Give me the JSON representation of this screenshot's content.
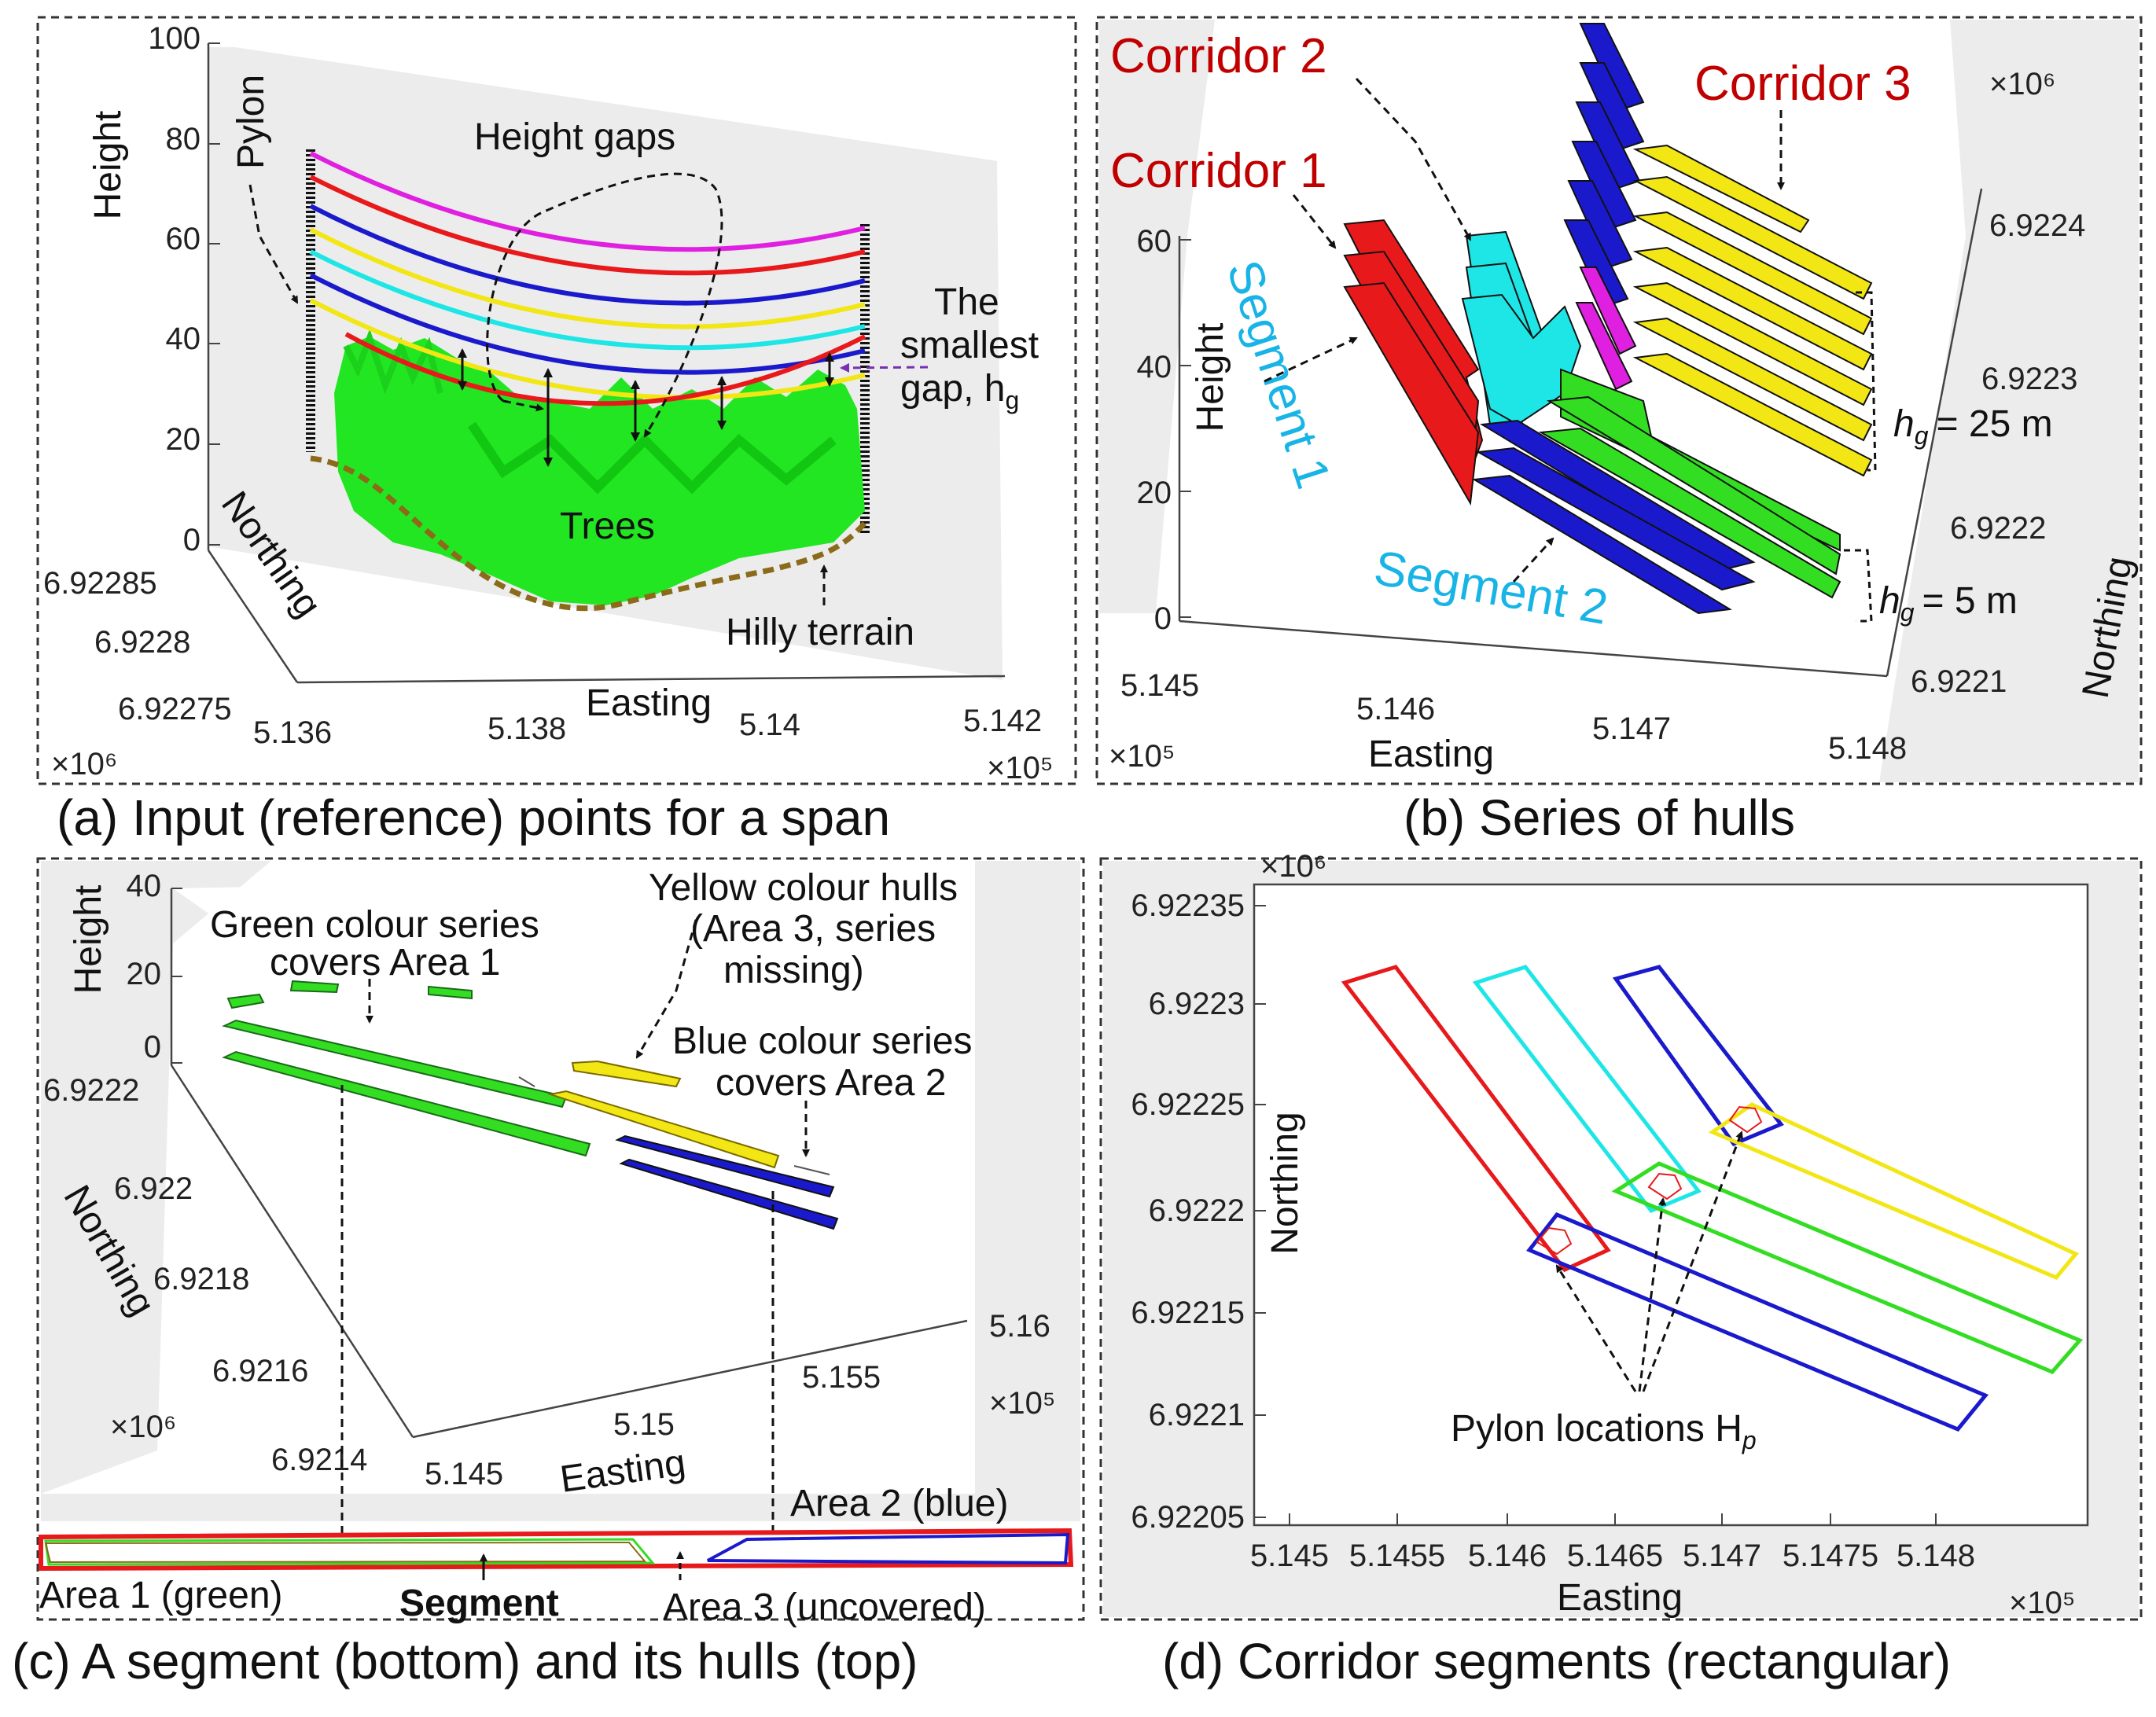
{
  "panel_a": {
    "caption": "(a) Input (reference) points for a span",
    "height_label": "Height",
    "northing_label": "Northing",
    "easting_label": "Easting",
    "height_ticks": [
      "100",
      "80",
      "60",
      "40",
      "20",
      "0"
    ],
    "northing_ticks": [
      "6.92285",
      "6.9228",
      "6.92275"
    ],
    "easting_ticks": [
      "5.136",
      "5.138",
      "5.14",
      "5.142"
    ],
    "northing_exp": "×10⁶",
    "easting_exp": "×10⁵",
    "pylon": "Pylon",
    "height_gaps": "Height gaps",
    "smallest_gap_1": "The",
    "smallest_gap_2": "smallest",
    "smallest_gap_3": "gap, h",
    "smallest_gap_sub": "g",
    "trees": "Trees",
    "hilly": "Hilly terrain"
  },
  "panel_b": {
    "caption": "(b) Series of hulls",
    "corridor1": "Corridor 1",
    "corridor2": "Corridor 2",
    "corridor3": "Corridor 3",
    "segment1": "Segment 1",
    "segment2": "Segment 2",
    "height_label": "Height",
    "northing_label": "Northing",
    "easting_label": "Easting",
    "height_ticks": [
      "60",
      "40",
      "20",
      "0"
    ],
    "easting_ticks": [
      "5.145",
      "5.146",
      "5.147",
      "5.148"
    ],
    "northing_ticks": [
      "6.9224",
      "6.9223",
      "6.9222",
      "6.9221"
    ],
    "northing_exp": "×10⁶",
    "easting_exp": "×10⁵",
    "hg25": "= 25 m",
    "hg5": "= 5 m",
    "h": "h",
    "g": "g"
  },
  "panel_c": {
    "caption": "(c) A segment (bottom) and its hulls (top)",
    "height_label": "Height",
    "northing_label": "Northing",
    "easting_label": "Easting",
    "height_ticks": [
      "40",
      "20",
      "0"
    ],
    "northing_ticks": [
      "6.9222",
      "6.922",
      "6.9218",
      "6.9216",
      "6.9214"
    ],
    "easting_ticks": [
      "5.145",
      "5.15",
      "5.155",
      "5.16"
    ],
    "northing_exp": "×10⁶",
    "easting_exp": "×10⁵",
    "green_1": "Green colour series",
    "green_2": "covers Area 1",
    "yellow_1": "Yellow colour hulls",
    "yellow_2": "(Area 3, series",
    "yellow_3": "missing)",
    "blue_1": "Blue colour series",
    "blue_2": "covers Area 2",
    "area1": "Area 1 (green)",
    "area2": "Area 2 (blue)",
    "area3": "Area 3 (uncovered)",
    "segment": "Segment"
  },
  "panel_d": {
    "caption": "(d) Corridor segments (rectangular)",
    "northing_label": "Northing",
    "easting_label": "Easting",
    "northing_ticks": [
      "6.92235",
      "6.9223",
      "6.92225",
      "6.9222",
      "6.92215",
      "6.9221",
      "6.92205"
    ],
    "easting_ticks": [
      "5.145",
      "5.1455",
      "5.146",
      "5.1465",
      "5.147",
      "5.1475",
      "5.148"
    ],
    "northing_exp": "×10⁶",
    "easting_exp": "×10⁵",
    "pylon_label": "Pylon locations H",
    "pylon_sub": "p"
  },
  "colors": {
    "red": "#e8191b",
    "blue": "#1a1acc",
    "cyan": "#1ee6e6",
    "green": "#33dd22",
    "yellow": "#f2e615",
    "magenta": "#e020e0",
    "dark_red": "#c00000",
    "seg_blue": "#19b4e6"
  }
}
